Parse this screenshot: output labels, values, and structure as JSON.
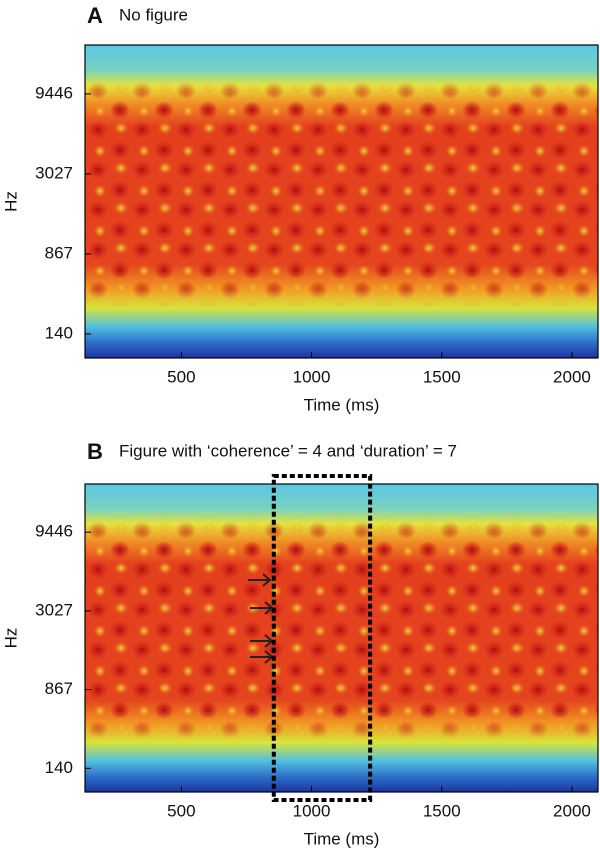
{
  "chart_data": [
    {
      "type": "spectrogram",
      "panel": "A",
      "title": "No figure",
      "xlabel": "Time (ms)",
      "ylabel": "Hz",
      "yscale": "erb",
      "xlim": [
        130,
        2100
      ],
      "xticks": [
        500,
        1000,
        1500,
        2000
      ],
      "ylim": [
        37,
        18600
      ],
      "yticks": [
        140,
        867,
        3027,
        9446
      ]
    },
    {
      "type": "spectrogram",
      "panel": "B",
      "title": "Figure with ‘coherence’ = 4 and ‘duration’ = 7",
      "xlabel": "Time (ms)",
      "ylabel": "Hz",
      "yscale": "erb",
      "xlim": [
        130,
        2100
      ],
      "xticks": [
        500,
        1000,
        1500,
        2000
      ],
      "ylim": [
        37,
        18600
      ],
      "yticks": [
        140,
        867,
        3027,
        9446
      ],
      "highlight": [
        855,
        1225
      ]
    }
  ]
}
